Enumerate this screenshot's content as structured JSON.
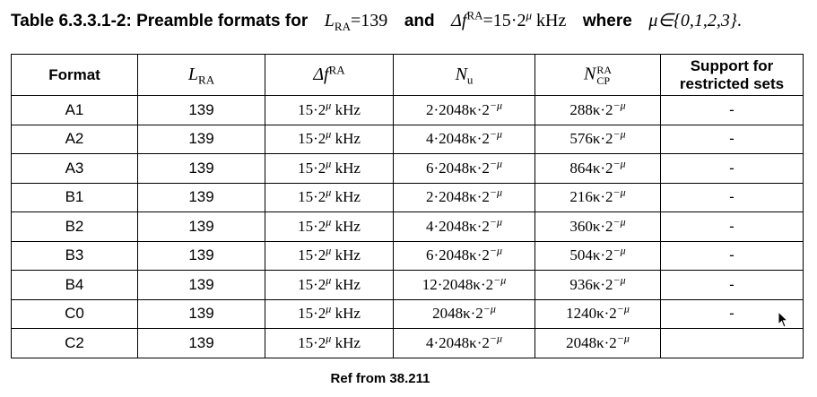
{
  "caption": {
    "prefix": "Table 6.3.3.1-2: Preamble formats for",
    "l": "L",
    "l_sub": "RA",
    "l_eq": "=139",
    "and": "and",
    "df": "Δf",
    "df_sup": "RA",
    "df_eq": "=15·2",
    "mu": "μ",
    "unit": "kHz",
    "where": "where",
    "set": "μ∈{0,1,2,3}",
    "end": "."
  },
  "table": {
    "headers": {
      "format": "Format",
      "lra": {
        "base": "L",
        "sub": "RA"
      },
      "dfra": {
        "base": "Δf",
        "sup": "RA"
      },
      "nu": {
        "base": "N",
        "sub": "u"
      },
      "ncp": {
        "base": "N",
        "sup": "RA",
        "sub": "CP"
      },
      "support": {
        "line1": "Support for",
        "line2": "restricted sets"
      }
    },
    "rows": [
      {
        "format": "A1",
        "lra": "139",
        "df": "15·2",
        "df_exp": "μ",
        "df_unit": "kHz",
        "nu": "2·2048κ·2",
        "nu_exp": "−μ",
        "ncp": "288κ·2",
        "ncp_exp": "−μ",
        "support": "-"
      },
      {
        "format": "A2",
        "lra": "139",
        "df": "15·2",
        "df_exp": "μ",
        "df_unit": "kHz",
        "nu": "4·2048κ·2",
        "nu_exp": "−μ",
        "ncp": "576κ·2",
        "ncp_exp": "−μ",
        "support": "-"
      },
      {
        "format": "A3",
        "lra": "139",
        "df": "15·2",
        "df_exp": "μ",
        "df_unit": "kHz",
        "nu": "6·2048κ·2",
        "nu_exp": "−μ",
        "ncp": "864κ·2",
        "ncp_exp": "−μ",
        "support": "-"
      },
      {
        "format": "B1",
        "lra": "139",
        "df": "15·2",
        "df_exp": "μ",
        "df_unit": "kHz",
        "nu": "2·2048κ·2",
        "nu_exp": "−μ",
        "ncp": "216κ·2",
        "ncp_exp": "−μ",
        "support": "-"
      },
      {
        "format": "B2",
        "lra": "139",
        "df": "15·2",
        "df_exp": "μ",
        "df_unit": "kHz",
        "nu": "4·2048κ·2",
        "nu_exp": "−μ",
        "ncp": "360κ·2",
        "ncp_exp": "−μ",
        "support": "-"
      },
      {
        "format": "B3",
        "lra": "139",
        "df": "15·2",
        "df_exp": "μ",
        "df_unit": "kHz",
        "nu": "6·2048κ·2",
        "nu_exp": "−μ",
        "ncp": "504κ·2",
        "ncp_exp": "−μ",
        "support": "-"
      },
      {
        "format": "B4",
        "lra": "139",
        "df": "15·2",
        "df_exp": "μ",
        "df_unit": "kHz",
        "nu": "12·2048κ·2",
        "nu_exp": "−μ",
        "ncp": "936κ·2",
        "ncp_exp": "−μ",
        "support": "-"
      },
      {
        "format": "C0",
        "lra": "139",
        "df": "15·2",
        "df_exp": "μ",
        "df_unit": "kHz",
        "nu": "2048κ·2",
        "nu_exp": "−μ",
        "ncp": "1240κ·2",
        "ncp_exp": "−μ",
        "support": "-"
      },
      {
        "format": "C2",
        "lra": "139",
        "df": "15·2",
        "df_exp": "μ",
        "df_unit": "kHz",
        "nu": "4·2048κ·2",
        "nu_exp": "−μ",
        "ncp": "2048κ·2",
        "ncp_exp": "−μ",
        "support": ""
      }
    ]
  },
  "footer": {
    "ref": "Ref from 38.211"
  },
  "cursor": {
    "icon": "mouse-pointer-icon",
    "color": "#000000"
  }
}
